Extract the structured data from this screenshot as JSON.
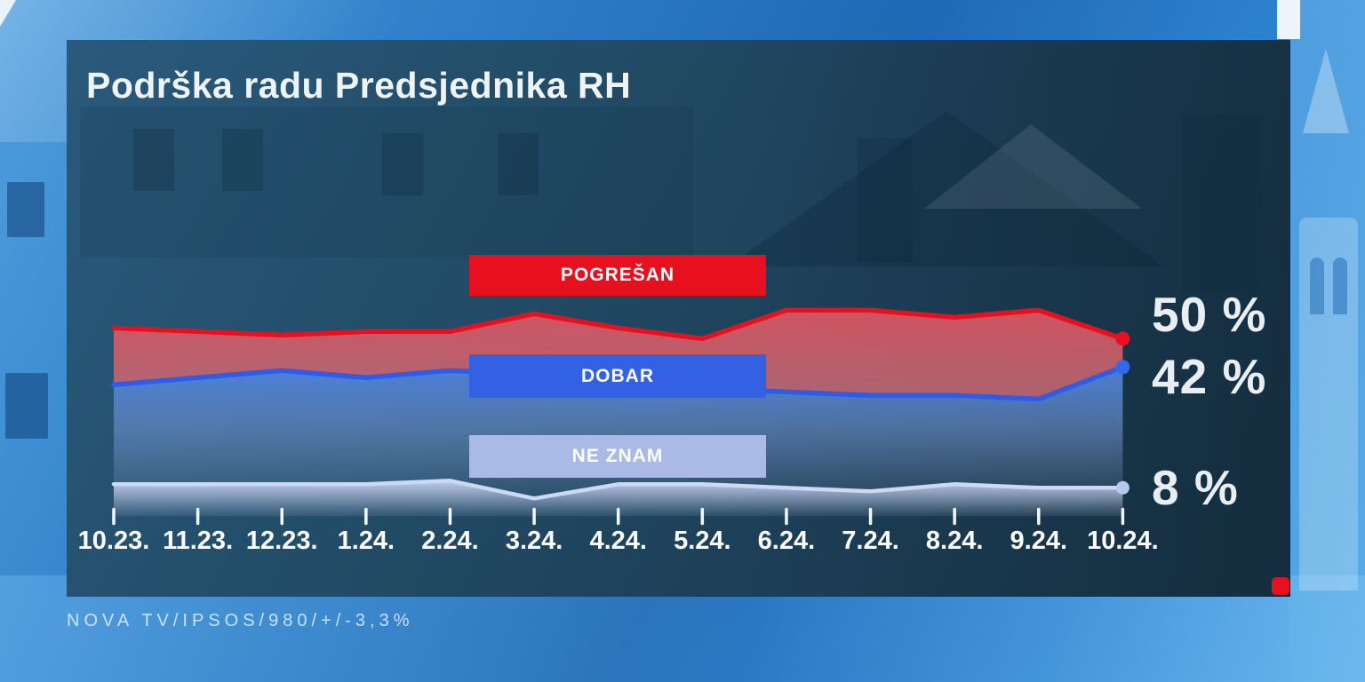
{
  "header": {
    "title": "Podrška radu Predsjednika RH"
  },
  "source": {
    "text": "NOVA TV/IPSOS/980/+/-3,3%"
  },
  "colors": {
    "pogresan_red": "#e8101e",
    "dobar_blue": "#3361e4",
    "ne_znam_light": "#a9bae6",
    "panel_dark": "#1d4058",
    "background_blue": "#2e7ec8",
    "text_white": "#eef3f6"
  },
  "chart_data": {
    "type": "area",
    "title": "Podrška radu Predsjednika RH",
    "categories": [
      "10.23.",
      "11.23.",
      "12.23.",
      "1.24.",
      "2.24.",
      "3.24.",
      "4.24.",
      "5.24.",
      "6.24.",
      "7.24.",
      "8.24.",
      "9.24.",
      "10.24."
    ],
    "series": [
      {
        "id": "pogresan",
        "name": "POGREŠAN",
        "color": "#e8101e",
        "values": [
          53,
          52,
          51,
          52,
          52,
          57,
          53,
          50,
          58,
          58,
          56,
          58,
          50
        ],
        "end_value": 50,
        "end_label": "50 %"
      },
      {
        "id": "dobar",
        "name": "DOBAR",
        "color": "#3361e4",
        "values": [
          37,
          39,
          41,
          39,
          41,
          40,
          39,
          36,
          35,
          34,
          34,
          33,
          42
        ],
        "end_value": 42,
        "end_label": "42 %"
      },
      {
        "id": "ne-znam",
        "name": "NE ZNAM",
        "color": "#a9bae6",
        "values": [
          9,
          9,
          9,
          9,
          10,
          5,
          9,
          9,
          8,
          7,
          9,
          8,
          8
        ],
        "end_value": 8,
        "end_label": "8 %"
      }
    ],
    "xlabel": "",
    "ylabel": "",
    "ylim": [
      0,
      65
    ],
    "grid": false,
    "legend_position": "inline-boxes-over-areas",
    "source": "NOVA TV/IPSOS/980/+/-3,3%"
  }
}
